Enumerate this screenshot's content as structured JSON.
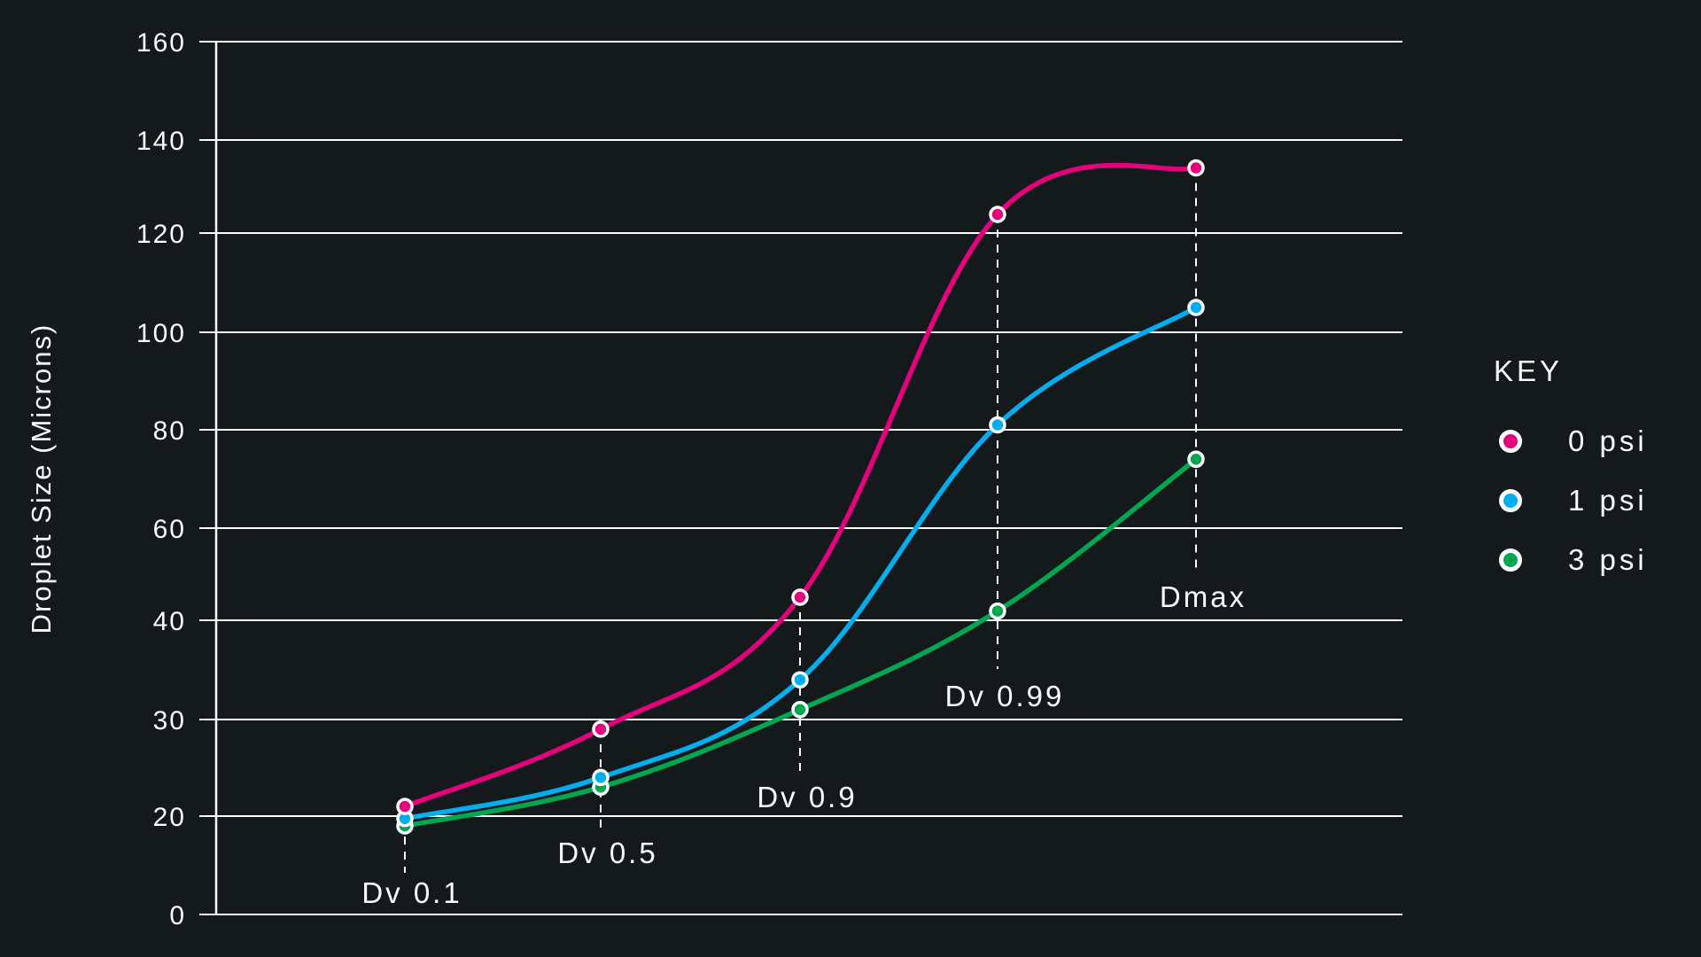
{
  "chart_data": {
    "type": "line",
    "title": "",
    "xlabel": "",
    "ylabel": "Droplet Size (Microns)",
    "ylim": [
      0,
      160
    ],
    "y_ticks": [
      0,
      20,
      30,
      40,
      60,
      80,
      100,
      120,
      140,
      160
    ],
    "y_tick_labels": [
      "0",
      "20",
      "30",
      "40",
      "60",
      "80",
      "100",
      "120",
      "140",
      "160"
    ],
    "grid": true,
    "legend_position": "right",
    "legend_title": "KEY",
    "categories": [
      "Dv 0.1",
      "Dv 0.5",
      "Dv 0.9",
      "Dv 0.99",
      "Dmax"
    ],
    "series": [
      {
        "name": "0 psi",
        "color": "#e6007e",
        "values": [
          21,
          29,
          45,
          124,
          134
        ]
      },
      {
        "name": "1 psi",
        "color": "#00aeef",
        "values": [
          19.5,
          24,
          34,
          81,
          105
        ]
      },
      {
        "name": "3 psi",
        "color": "#00a650",
        "values": [
          18,
          23,
          31,
          42,
          74
        ]
      }
    ]
  },
  "legend": {
    "title": "KEY",
    "items": [
      {
        "label": "0 psi",
        "color": "#e6007e"
      },
      {
        "label": "1 psi",
        "color": "#00aeef"
      },
      {
        "label": "3 psi",
        "color": "#00a650"
      }
    ]
  },
  "axis": {
    "y_title": "Droplet Size (Microns)"
  }
}
